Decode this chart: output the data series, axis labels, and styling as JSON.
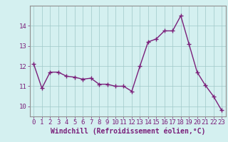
{
  "x": [
    0,
    1,
    2,
    3,
    4,
    5,
    6,
    7,
    8,
    9,
    10,
    11,
    12,
    13,
    14,
    15,
    16,
    17,
    18,
    19,
    20,
    21,
    22,
    23
  ],
  "y": [
    12.1,
    10.9,
    11.7,
    11.7,
    11.5,
    11.45,
    11.35,
    11.4,
    11.1,
    11.1,
    11.0,
    11.0,
    10.75,
    12.0,
    13.2,
    13.35,
    13.75,
    13.75,
    14.5,
    13.1,
    11.7,
    11.05,
    10.5,
    9.8
  ],
  "line_color": "#7a1f7a",
  "marker": "+",
  "marker_color": "#7a1f7a",
  "bg_color": "#d4f0f0",
  "grid_color": "#a0c8c8",
  "xlabel": "Windchill (Refroidissement éolien,°C)",
  "ylim": [
    9.5,
    15.0
  ],
  "xlim": [
    -0.5,
    23.5
  ],
  "yticks": [
    10,
    11,
    12,
    13,
    14
  ],
  "xticks": [
    0,
    1,
    2,
    3,
    4,
    5,
    6,
    7,
    8,
    9,
    10,
    11,
    12,
    13,
    14,
    15,
    16,
    17,
    18,
    19,
    20,
    21,
    22,
    23
  ],
  "xlabel_fontsize": 7,
  "tick_fontsize": 6.5,
  "line_width": 1.0,
  "marker_size": 4
}
